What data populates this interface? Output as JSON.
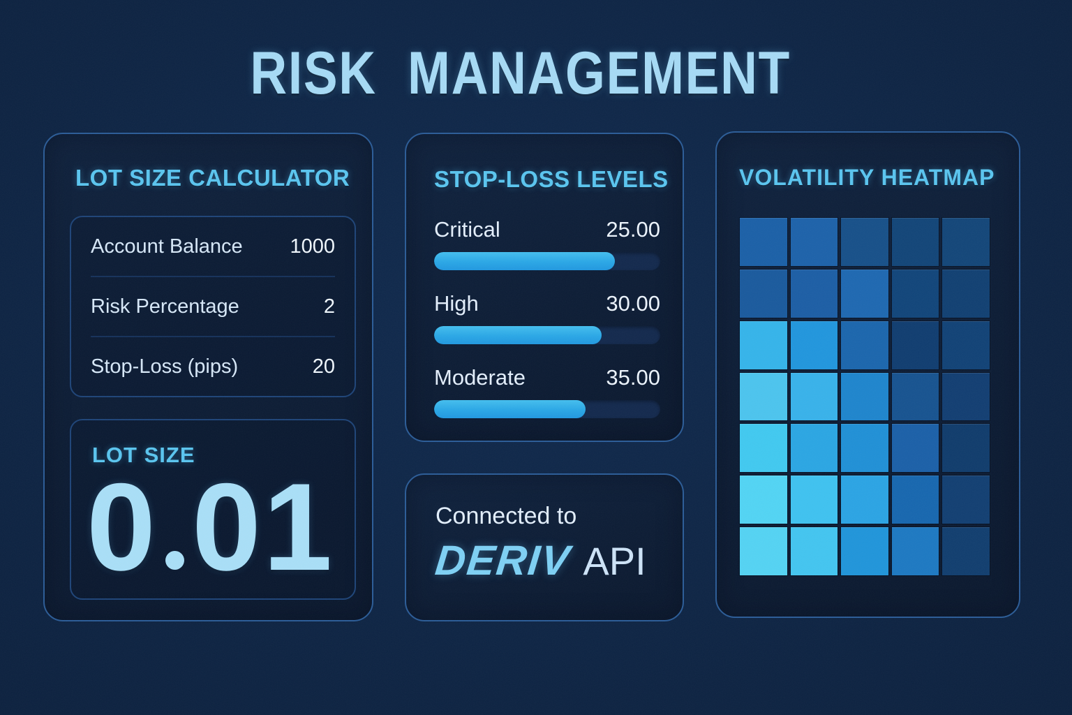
{
  "title": "RISK MANAGEMENT",
  "title_words": {
    "w1": "RISK",
    "w2": "MANAGEMENT"
  },
  "lot_calculator": {
    "heading": "LOT SIZE CALCULATOR",
    "fields": [
      {
        "label": "Account Balance",
        "value": "1000"
      },
      {
        "label": "Risk Percentage",
        "value": "2"
      },
      {
        "label": "Stop-Loss (pips)",
        "value": "20"
      }
    ],
    "result_label": "LOT SIZE",
    "result_value": "0.01"
  },
  "stop_loss": {
    "heading": "STOP-LOSS LEVELS",
    "levels": [
      {
        "label": "Critical",
        "value": "25.00",
        "percent": 80
      },
      {
        "label": "High",
        "value": "30.00",
        "percent": 74
      },
      {
        "label": "Moderate",
        "value": "35.00",
        "percent": 67
      }
    ]
  },
  "connection": {
    "line1": "Connected to",
    "brand": "DERIV",
    "suffix": "API"
  },
  "heatmap": {
    "heading": "VOLATILITY HEATMAP",
    "rows": 7,
    "cols": 5,
    "cell_colors": [
      [
        "#1b60a7",
        "#1d62aa",
        "#175089",
        "#124578",
        "#134679"
      ],
      [
        "#1a5a9d",
        "#1c5ea5",
        "#1e68b1",
        "#11457a",
        "#114072"
      ],
      [
        "#35b4ea",
        "#2196dd",
        "#1b66ad",
        "#103d70",
        "#114276"
      ],
      [
        "#4cc4ee",
        "#38b2ea",
        "#1e85cd",
        "#175390",
        "#123e72"
      ],
      [
        "#41c9f0",
        "#2ba6e3",
        "#2090d6",
        "#1b60a8",
        "#103c6c"
      ],
      [
        "#52d4f4",
        "#3fc2f0",
        "#2ba4e4",
        "#1767af",
        "#123f72"
      ],
      [
        "#54d3f3",
        "#43c5f0",
        "#2095da",
        "#1d79c2",
        "#113e6f"
      ]
    ]
  },
  "colors": {
    "background": "#0e2342",
    "panel_border": "#2b5c97",
    "heading_cyan": "#5ac5ef",
    "title_blue": "#a6daf5",
    "bar_fill": "#2aa7e6",
    "bar_track": "#13294d"
  }
}
